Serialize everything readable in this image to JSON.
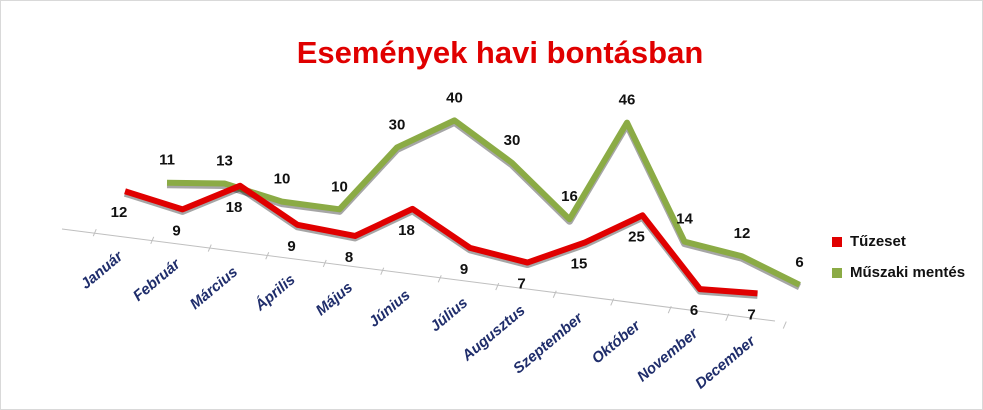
{
  "chart_data": {
    "type": "line3d",
    "title": "Események havi bontásban",
    "categories": [
      "Január",
      "Február",
      "Március",
      "Április",
      "Május",
      "Június",
      "Július",
      "Augusztus",
      "Szeptember",
      "Október",
      "November",
      "December"
    ],
    "series": [
      {
        "name": "Tűzeset",
        "color": "#e00000",
        "values": [
          12,
          9,
          18,
          9,
          8,
          18,
          9,
          7,
          15,
          25,
          6,
          7
        ]
      },
      {
        "name": "Műszaki mentés",
        "color": "#8bab45",
        "values": [
          11,
          13,
          10,
          10,
          30,
          40,
          30,
          16,
          46,
          14,
          12,
          6
        ]
      }
    ],
    "legend": "right"
  }
}
